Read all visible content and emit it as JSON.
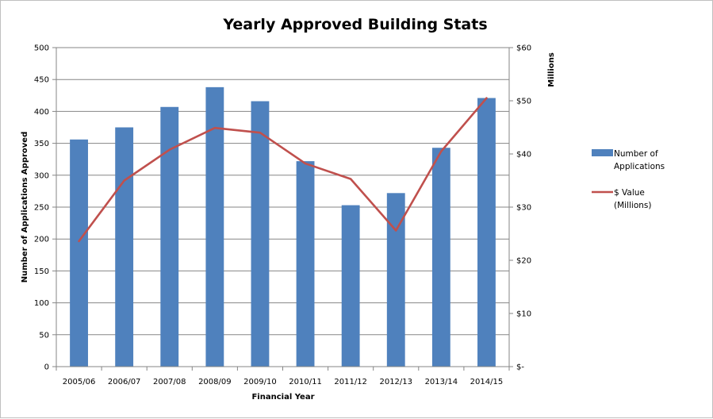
{
  "chart_data": {
    "type": "bar",
    "title": "Yearly Approved Building Stats",
    "xlabel": "Financial Year",
    "ylabel": "Number of Applications Approved",
    "y2label": "Millions",
    "categories": [
      "2005/06",
      "2006/07",
      "2007/08",
      "2008/09",
      "2009/10",
      "2010/11",
      "2011/12",
      "2012/13",
      "2013/14",
      "2014/15"
    ],
    "ylim": [
      0,
      500
    ],
    "yticks": [
      "0",
      "50",
      "100",
      "150",
      "200",
      "250",
      "300",
      "350",
      "400",
      "450",
      "500"
    ],
    "y2lim": [
      0,
      60
    ],
    "y2ticks": [
      "$-",
      "$10",
      "$20",
      "$30",
      "$40",
      "$50",
      "$60"
    ],
    "grid": true,
    "legend_position": "right",
    "series": [
      {
        "name": "Number of Applications",
        "type": "bar",
        "axis": "left",
        "color": "#4f81bd",
        "values": [
          356,
          375,
          407,
          438,
          416,
          322,
          253,
          272,
          343,
          421
        ]
      },
      {
        "name": "$ Value (Millions)",
        "type": "line",
        "axis": "right",
        "color": "#c0504d",
        "values": [
          23.6,
          35.0,
          40.8,
          44.9,
          44.0,
          38.2,
          35.3,
          25.6,
          40.5,
          50.5
        ]
      }
    ]
  }
}
